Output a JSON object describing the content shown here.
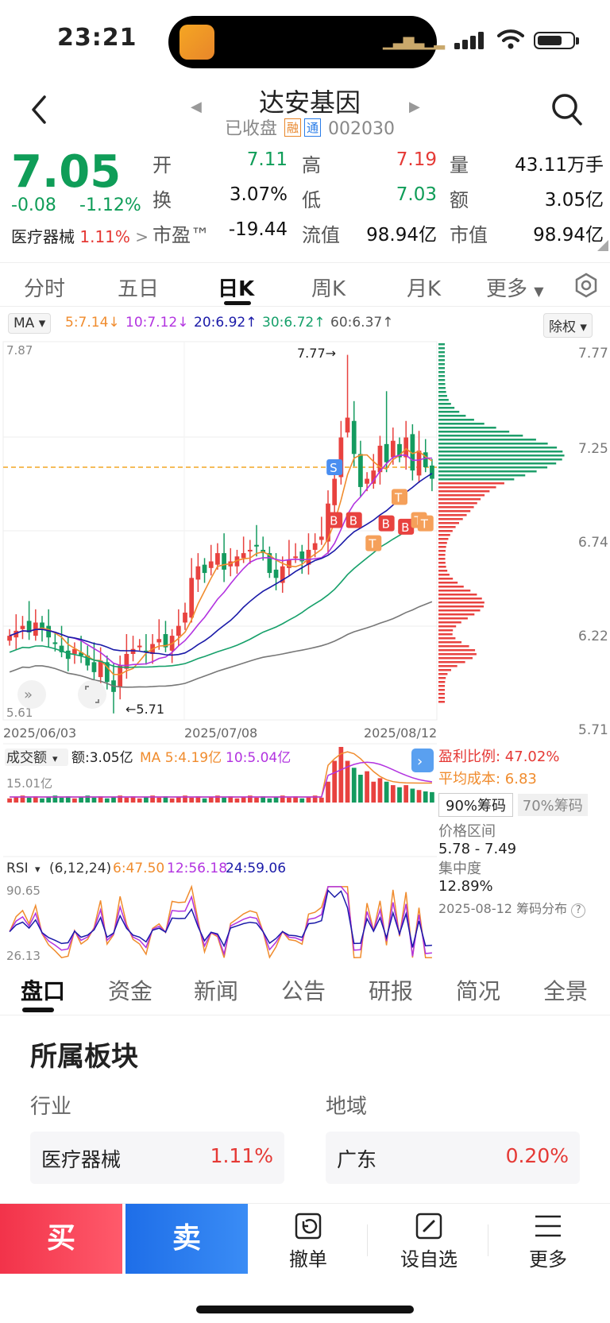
{
  "status_bar": {
    "time": "23:21"
  },
  "header": {
    "stock_name": "达安基因",
    "status": "已收盘",
    "tag_margin": "融",
    "tag_connect": "通",
    "code": "002030"
  },
  "quote": {
    "price": "7.05",
    "change": "-0.08",
    "change_pct": "-1.12%",
    "industry_name": "医疗器械",
    "industry_pct": "1.11%",
    "fields": [
      {
        "label": "开",
        "value": "7.11",
        "color": "green"
      },
      {
        "label": "高",
        "value": "7.19",
        "color": "red"
      },
      {
        "label": "量",
        "value": "43.11万手",
        "color": "black"
      },
      {
        "label": "换",
        "value": "3.07%",
        "color": "black"
      },
      {
        "label": "低",
        "value": "7.03",
        "color": "green"
      },
      {
        "label": "额",
        "value": "3.05亿",
        "color": "black"
      },
      {
        "label": "市盈™",
        "value": "-19.44",
        "color": "black"
      },
      {
        "label": "流值",
        "value": "98.94亿",
        "color": "black"
      },
      {
        "label": "市值",
        "value": "98.94亿",
        "color": "black"
      }
    ]
  },
  "chart_tabs": [
    "分时",
    "五日",
    "日K",
    "周K",
    "月K",
    "更多"
  ],
  "active_chart_tab": "日K",
  "ma_legend": {
    "selector": "MA",
    "items": [
      {
        "text": "5:7.14↓",
        "color": "#f08c2e"
      },
      {
        "text": "10:7.12↓",
        "color": "#b233e0"
      },
      {
        "text": "20:6.92↑",
        "color": "#1a1aa8"
      },
      {
        "text": "30:6.72↑",
        "color": "#16a06a"
      },
      {
        "text": "60:6.37↑",
        "color": "#555555"
      }
    ],
    "adjust": "除权"
  },
  "kline": {
    "y_top_label": "7.87",
    "y_bottom_label": "5.61",
    "right_labels": [
      "7.77",
      "7.25",
      "6.74",
      "6.22",
      "5.71"
    ],
    "high_marker": "7.77→",
    "low_marker": "←5.71",
    "dates": [
      "2025/06/03",
      "2025/07/08",
      "2025/08/12"
    ]
  },
  "volume": {
    "selector": "成交额",
    "amount": "额:3.05亿",
    "ma5": "MA 5:4.19亿",
    "ma10": "10:5.04亿",
    "max_label": "15.01亿"
  },
  "rsi": {
    "selector": "RSI",
    "params": "(6,12,24)",
    "r6": "6:47.50",
    "r12": "12:56.18",
    "r24": "24:59.06",
    "top_label": "90.65",
    "bottom_label": "26.13"
  },
  "chip": {
    "profit_ratio": "盈利比例: 47.02%",
    "avg_cost": "平均成本: 6.83",
    "btn_90": "90%筹码",
    "btn_70": "70%筹码",
    "range_label": "价格区间",
    "range_value": "5.78 - 7.49",
    "concentration_label": "集中度",
    "concentration_value": "12.89%",
    "dist_label": "2025-08-12 筹码分布"
  },
  "section_tabs": [
    "盘口",
    "资金",
    "新闻",
    "公告",
    "研报",
    "简况",
    "全景"
  ],
  "blocks": {
    "title": "所属板块",
    "industry_label": "行业",
    "region_label": "地域",
    "industry": {
      "name": "医疗器械",
      "pct": "1.11%"
    },
    "region": {
      "name": "广东",
      "pct": "0.20%"
    }
  },
  "toolbar": {
    "buy": "买",
    "sell": "卖",
    "cancel": "撤单",
    "watch": "设自选",
    "more": "更多"
  }
}
